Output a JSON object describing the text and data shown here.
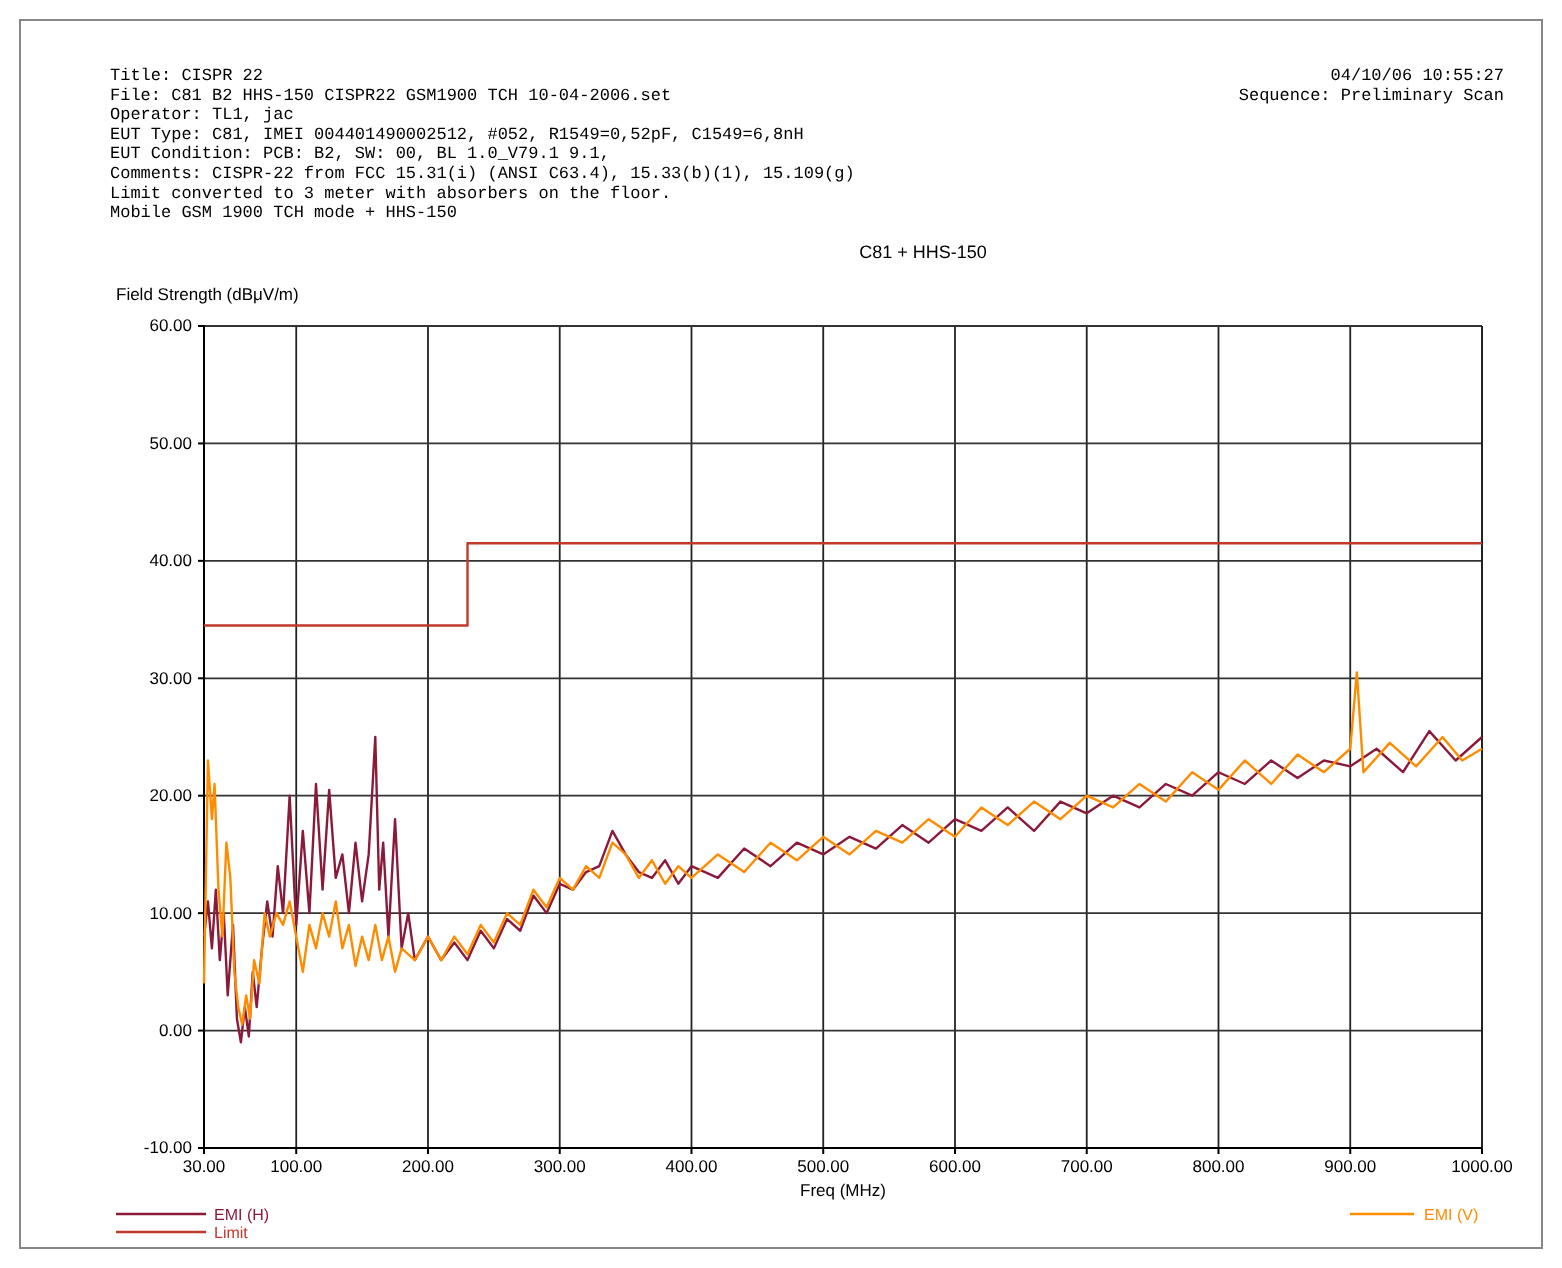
{
  "chart_data": {
    "type": "line",
    "title": "C81 + HHS-150",
    "xlabel": "Freq (MHz)",
    "ylabel": "Field Strength (dBμV/m)",
    "annotations": [
      "Title: CISPR 22",
      "File: C81 B2 HHS-150 CISPR22 GSM1900 TCH 10-04-2006.set",
      "Operator: TL1, jac",
      "EUT Type: C81, IMEI 004401490002512, #052, R1549=0,52pF, C1549=6,8nH",
      "EUT Condition: PCB: B2, SW: 00, BL 1.0_V79.1 9.1,",
      "Comments: CISPR-22 from FCC 15.31(i) (ANSI C63.4), 15.33(b)(1), 15.109(g)",
      "Limit converted to 3 meter with absorbers on the floor.",
      "Mobile GSM 1900 TCH mode + HHS-150",
      "04/10/06 10:55:27",
      "Sequence: Preliminary Scan"
    ],
    "xlim": [
      30,
      1000
    ],
    "ylim": [
      -10,
      60
    ],
    "xticks": [
      {
        "value": 30,
        "label": "30.00"
      },
      {
        "value": 100,
        "label": "100.00"
      },
      {
        "value": 200,
        "label": "200.00"
      },
      {
        "value": 300,
        "label": "300.00"
      },
      {
        "value": 400,
        "label": "400.00"
      },
      {
        "value": 500,
        "label": "500.00"
      },
      {
        "value": 600,
        "label": "600.00"
      },
      {
        "value": 700,
        "label": "700.00"
      },
      {
        "value": 800,
        "label": "800.00"
      },
      {
        "value": 900,
        "label": "900.00"
      },
      {
        "value": 1000,
        "label": "1000.00"
      }
    ],
    "yticks": [
      {
        "value": -10,
        "label": "-10.00"
      },
      {
        "value": 0,
        "label": "0.00"
      },
      {
        "value": 10,
        "label": "10.00"
      },
      {
        "value": 20,
        "label": "20.00"
      },
      {
        "value": 30,
        "label": "30.00"
      },
      {
        "value": 40,
        "label": "40.00"
      },
      {
        "value": 50,
        "label": "50.00"
      },
      {
        "value": 60,
        "label": "60.00"
      }
    ],
    "grid": true,
    "legend": "bottom",
    "series": [
      {
        "name": "EMI (H)",
        "color": "#8b1a3a",
        "x": [
          30,
          33,
          36,
          39,
          42,
          45,
          48,
          52,
          55,
          58,
          61,
          64,
          67,
          70,
          74,
          78,
          82,
          86,
          90,
          95,
          100,
          105,
          110,
          115,
          120,
          125,
          130,
          135,
          140,
          145,
          150,
          155,
          160,
          163,
          166,
          170,
          175,
          180,
          185,
          190,
          200,
          210,
          220,
          230,
          240,
          250,
          260,
          270,
          280,
          290,
          300,
          310,
          320,
          330,
          340,
          350,
          360,
          370,
          380,
          390,
          400,
          420,
          440,
          460,
          480,
          500,
          520,
          540,
          560,
          580,
          600,
          620,
          640,
          660,
          680,
          700,
          720,
          740,
          760,
          780,
          800,
          820,
          840,
          860,
          880,
          900,
          920,
          940,
          960,
          980,
          1000
        ],
        "values": [
          8,
          11,
          7,
          12,
          6,
          10,
          3,
          9,
          1,
          -1,
          2,
          -0.5,
          5,
          2,
          7,
          11,
          8,
          14,
          10,
          20,
          9,
          17,
          10,
          21,
          12,
          20.5,
          13,
          15,
          10,
          16,
          11,
          15,
          25,
          12,
          16,
          8,
          18,
          7,
          10,
          6,
          8,
          6,
          7.5,
          6,
          8.5,
          7,
          9.5,
          8.5,
          11.5,
          10,
          12.5,
          12,
          13.5,
          14,
          17,
          15,
          13.5,
          13,
          14.5,
          12.5,
          14,
          13,
          15.5,
          14,
          16,
          15,
          16.5,
          15.5,
          17.5,
          16,
          18,
          17,
          19,
          17,
          19.5,
          18.5,
          20,
          19,
          21,
          20,
          22,
          21,
          23,
          21.5,
          23,
          22.5,
          24,
          22,
          25.5,
          23,
          25
        ]
      },
      {
        "name": "EMI (V)",
        "color": "#ff8c00",
        "x": [
          30,
          33,
          36,
          38,
          41,
          44,
          47,
          50,
          53,
          56,
          59,
          62,
          65,
          68,
          72,
          76,
          80,
          85,
          90,
          95,
          100,
          105,
          110,
          115,
          120,
          125,
          130,
          135,
          140,
          145,
          150,
          155,
          160,
          165,
          170,
          175,
          180,
          190,
          200,
          210,
          220,
          230,
          240,
          250,
          260,
          270,
          280,
          290,
          300,
          310,
          320,
          330,
          340,
          350,
          360,
          370,
          380,
          390,
          400,
          420,
          440,
          460,
          480,
          500,
          520,
          540,
          560,
          580,
          600,
          620,
          640,
          660,
          680,
          700,
          720,
          740,
          760,
          780,
          800,
          820,
          840,
          860,
          880,
          900,
          905,
          910,
          930,
          950,
          970,
          985,
          1000
        ],
        "values": [
          4,
          23,
          18,
          21,
          12,
          8,
          16,
          13,
          5,
          2,
          0.5,
          3,
          1,
          6,
          4,
          10,
          8,
          10,
          9,
          11,
          8,
          5,
          9,
          7,
          10,
          8,
          11,
          7,
          9,
          5.5,
          8,
          6,
          9,
          6,
          8,
          5,
          7,
          6,
          8,
          6,
          8,
          6.5,
          9,
          7.5,
          10,
          9,
          12,
          10.5,
          13,
          12,
          14,
          13,
          16,
          15,
          13,
          14.5,
          12.5,
          14,
          13,
          15,
          13.5,
          16,
          14.5,
          16.5,
          15,
          17,
          16,
          18,
          16.5,
          19,
          17.5,
          19.5,
          18,
          20,
          19,
          21,
          19.5,
          22,
          20.5,
          23,
          21,
          23.5,
          22,
          24,
          30.5,
          22,
          24.5,
          22.5,
          25,
          23,
          24
        ]
      },
      {
        "name": "Limit",
        "color": "#c0392b",
        "x": [
          30,
          230,
          230,
          1000
        ],
        "values": [
          34.5,
          34.5,
          41.5,
          41.5
        ]
      }
    ]
  }
}
